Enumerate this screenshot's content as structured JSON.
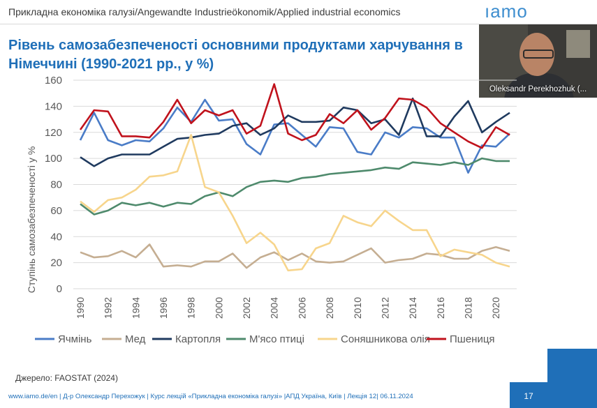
{
  "header": {
    "course_title": "Прикладна економіка галузі/Angewandte Industrieökonomik/Applied industrial economics",
    "logo_text": "ıamo"
  },
  "slide": {
    "title": "Рівень самозабезпеченості основними продуктами харчування в Німеччині (1990-2021 рр., у %)",
    "source": "Джерело: FAOSTAT (2024)",
    "footer": "www.iamo.de/en  | Д-р Олександр Перехожук | Курс лекцій «Прикладна економіка галузі» |АПД Україна, Київ | Лекція 12| 06.11.2024",
    "page_number": "17"
  },
  "webcam": {
    "participant_name": "Oleksandr Perekhozhuk (..."
  },
  "colors": {
    "accent": "#1f6fb8",
    "logo": "#3e8ecf"
  },
  "chart_data": {
    "type": "line",
    "title": "",
    "xlabel": "",
    "ylabel": "Ступінь самозабезпеченості у %",
    "x": [
      1990,
      1991,
      1992,
      1993,
      1994,
      1995,
      1996,
      1997,
      1998,
      1999,
      2000,
      2001,
      2002,
      2003,
      2004,
      2005,
      2006,
      2007,
      2008,
      2009,
      2010,
      2011,
      2012,
      2013,
      2014,
      2015,
      2016,
      2017,
      2018,
      2019,
      2020,
      2021
    ],
    "x_ticks": [
      "1990",
      "1992",
      "1994",
      "1996",
      "1998",
      "2000",
      "2002",
      "2004",
      "2006",
      "2008",
      "2010",
      "2012",
      "2014",
      "2016",
      "2018",
      "2020"
    ],
    "ylim": [
      0,
      160
    ],
    "y_ticks": [
      "0",
      "20",
      "40",
      "60",
      "80",
      "100",
      "120",
      "140",
      "160"
    ],
    "grid": "horizontal",
    "legend_position": "bottom",
    "series": [
      {
        "name": "Ячмінь",
        "color": "#4a7cc7",
        "values": [
          114,
          135,
          114,
          110,
          114,
          113,
          123,
          139,
          128,
          145,
          129,
          130,
          111,
          103,
          126,
          127,
          118,
          109,
          124,
          123,
          105,
          103,
          120,
          116,
          124,
          123,
          116,
          116,
          89,
          110,
          109,
          119
        ]
      },
      {
        "name": "Мед",
        "color": "#c5ae92",
        "values": [
          28,
          24,
          25,
          29,
          24,
          34,
          17,
          18,
          17,
          21,
          21,
          27,
          16,
          24,
          28,
          22,
          27,
          21,
          20,
          21,
          26,
          31,
          20,
          22,
          23,
          27,
          26,
          23,
          23,
          29,
          32,
          29
        ]
      },
      {
        "name": "Картопля",
        "color": "#1f3a5f",
        "values": [
          101,
          94,
          100,
          103,
          103,
          103,
          109,
          115,
          116,
          118,
          119,
          125,
          127,
          118,
          123,
          133,
          128,
          128,
          129,
          139,
          137,
          127,
          130,
          118,
          146,
          117,
          117,
          132,
          144,
          120,
          128,
          135
        ]
      },
      {
        "name": "М'ясо птиці",
        "color": "#4e8a6c",
        "values": [
          65,
          57,
          60,
          66,
          64,
          66,
          63,
          66,
          65,
          71,
          74,
          71,
          78,
          82,
          83,
          82,
          85,
          86,
          88,
          89,
          90,
          91,
          93,
          92,
          97,
          96,
          95,
          97,
          95,
          100,
          98,
          98
        ]
      },
      {
        "name": "Соняшникова олія",
        "color": "#f7d58c",
        "values": [
          67,
          59,
          68,
          70,
          76,
          86,
          87,
          90,
          118,
          78,
          74,
          56,
          35,
          43,
          34,
          14,
          15,
          31,
          35,
          56,
          51,
          48,
          60,
          52,
          45,
          45,
          25,
          30,
          28,
          26,
          20,
          17
        ]
      },
      {
        "name": "Пшениця",
        "color": "#c0121c",
        "values": [
          122,
          137,
          136,
          117,
          117,
          116,
          128,
          145,
          127,
          137,
          133,
          137,
          119,
          125,
          157,
          119,
          114,
          118,
          134,
          127,
          137,
          122,
          131,
          146,
          145,
          139,
          127,
          120,
          113,
          108,
          124,
          118
        ]
      }
    ]
  }
}
